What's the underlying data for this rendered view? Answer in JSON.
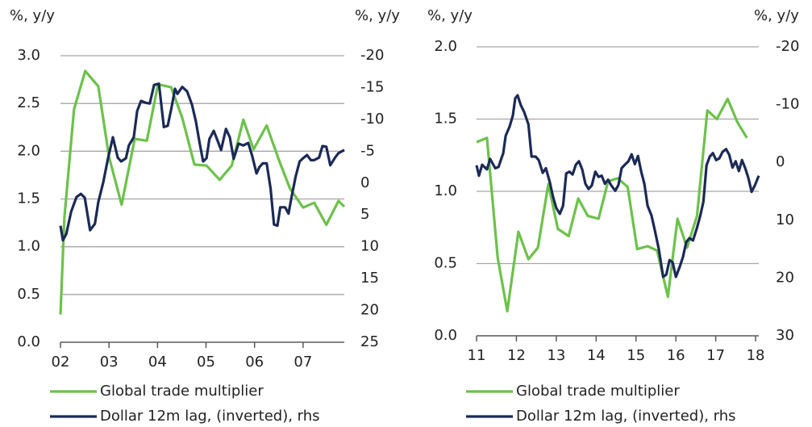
{
  "chart_data": [
    {
      "type": "line",
      "y_label": "%, y/y",
      "y2_label": "%, y/y",
      "xlim": [
        2002,
        2007.85
      ],
      "xticks": [
        {
          "value": 2002,
          "label": "02"
        },
        {
          "value": 2003,
          "label": "03"
        },
        {
          "value": 2004,
          "label": "04"
        },
        {
          "value": 2005,
          "label": "05"
        },
        {
          "value": 2006,
          "label": "06"
        },
        {
          "value": 2007,
          "label": "07"
        }
      ],
      "ylim": [
        0,
        3
      ],
      "yticks": [
        {
          "value": 0,
          "label": "0.0"
        },
        0.5,
        {
          "value": 1,
          "label": "1.0"
        },
        1.5,
        {
          "value": 2,
          "label": "2.0"
        },
        2.5,
        {
          "value": 3,
          "label": "3.0"
        }
      ],
      "y2lim": [
        25,
        -20
      ],
      "y2ticks": [
        25,
        20,
        15,
        10,
        5,
        0,
        -5,
        -10,
        -15,
        -20
      ],
      "grid": true,
      "series": [
        {
          "name": "Global trade multiplier",
          "color": "#6cc24a",
          "axis": "y",
          "x": [
            2002.0,
            2002.08,
            2002.28,
            2002.51,
            2002.78,
            2003.0,
            2003.26,
            2003.53,
            2003.78,
            2004.01,
            2004.28,
            2004.51,
            2004.76,
            2005.01,
            2005.28,
            2005.53,
            2005.77,
            2005.98,
            2006.25,
            2006.5,
            2006.73,
            2007.0,
            2007.23,
            2007.48,
            2007.73,
            2007.85
          ],
          "values": [
            0.29,
            1.3,
            2.44,
            2.84,
            2.68,
            1.94,
            1.44,
            2.13,
            2.11,
            2.7,
            2.67,
            2.35,
            1.86,
            1.85,
            1.7,
            1.85,
            2.33,
            2.02,
            2.27,
            1.91,
            1.61,
            1.41,
            1.46,
            1.23,
            1.48,
            1.42
          ]
        },
        {
          "name": "Dollar 12m lag, (inverted), rhs",
          "color": "#1b2a57",
          "axis": "y2",
          "x": [
            2002.0,
            2002.05,
            2002.12,
            2002.22,
            2002.33,
            2002.42,
            2002.5,
            2002.61,
            2002.71,
            2002.78,
            2002.88,
            2002.98,
            2003.08,
            2003.18,
            2003.25,
            2003.35,
            2003.41,
            2003.51,
            2003.58,
            2003.66,
            2003.76,
            2003.84,
            2003.93,
            2004.03,
            2004.13,
            2004.21,
            2004.29,
            2004.36,
            2004.41,
            2004.51,
            2004.61,
            2004.71,
            2004.79,
            2004.87,
            2004.94,
            2005.01,
            2005.07,
            2005.16,
            2005.24,
            2005.31,
            2005.41,
            2005.49,
            2005.57,
            2005.67,
            2005.77,
            2005.87,
            2005.95,
            2006.04,
            2006.1,
            2006.17,
            2006.25,
            2006.33,
            2006.4,
            2006.47,
            2006.53,
            2006.63,
            2006.7,
            2006.77,
            2006.85,
            2006.93,
            2007.0,
            2007.08,
            2007.16,
            2007.23,
            2007.33,
            2007.4,
            2007.48,
            2007.56,
            2007.66,
            2007.73,
            2007.85
          ],
          "values": [
            6.7,
            9.0,
            8.0,
            4.5,
            2.2,
            1.7,
            2.3,
            7.4,
            6.4,
            3.0,
            -0.1,
            -3.9,
            -7.2,
            -4.0,
            -3.4,
            -3.9,
            -5.9,
            -7.2,
            -11.3,
            -12.9,
            -12.6,
            -12.5,
            -15.4,
            -15.6,
            -8.8,
            -9.0,
            -11.9,
            -14.8,
            -14.0,
            -15.1,
            -14.4,
            -12.3,
            -9.7,
            -6.2,
            -3.4,
            -3.9,
            -6.9,
            -8.2,
            -6.6,
            -5.2,
            -8.5,
            -7.2,
            -3.8,
            -6.2,
            -5.9,
            -6.3,
            -4.3,
            -1.5,
            -2.5,
            -3.1,
            -3.1,
            0.8,
            6.5,
            6.7,
            3.8,
            3.8,
            4.8,
            1.9,
            -1.1,
            -3.4,
            -3.9,
            -4.4,
            -3.6,
            -3.6,
            -4.0,
            -5.8,
            -5.7,
            -2.8,
            -4.0,
            -4.7,
            -5.2
          ]
        }
      ]
    },
    {
      "type": "line",
      "y_label": "%, y/y",
      "y2_label": "%, y/y",
      "xlim": [
        2011,
        2018.08
      ],
      "xticks": [
        {
          "value": 2011,
          "label": "11"
        },
        {
          "value": 2012,
          "label": "12"
        },
        {
          "value": 2013,
          "label": "13"
        },
        {
          "value": 2014,
          "label": "14"
        },
        {
          "value": 2015,
          "label": "15"
        },
        {
          "value": 2016,
          "label": "16"
        },
        {
          "value": 2017,
          "label": "17"
        },
        {
          "value": 2018,
          "label": "18"
        }
      ],
      "ylim": [
        0,
        2
      ],
      "yticks": [
        {
          "value": 0,
          "label": "0.0"
        },
        0.5,
        {
          "value": 1,
          "label": "1.0"
        },
        1.5,
        {
          "value": 2,
          "label": "2.0"
        }
      ],
      "y2lim": [
        30,
        -20
      ],
      "y2ticks": [
        30,
        20,
        10,
        0,
        -10,
        -20
      ],
      "grid": true,
      "series": [
        {
          "name": "Global trade multiplier",
          "color": "#6cc24a",
          "axis": "y",
          "x": [
            2011.0,
            2011.26,
            2011.53,
            2011.77,
            2012.05,
            2012.3,
            2012.54,
            2012.8,
            2013.04,
            2013.31,
            2013.55,
            2013.79,
            2014.06,
            2014.3,
            2014.54,
            2014.79,
            2015.03,
            2015.29,
            2015.53,
            2015.8,
            2016.04,
            2016.28,
            2016.53,
            2016.79,
            2017.03,
            2017.3,
            2017.54,
            2017.78
          ],
          "values": [
            1.34,
            1.37,
            0.54,
            0.17,
            0.72,
            0.53,
            0.61,
            1.05,
            0.74,
            0.69,
            0.95,
            0.83,
            0.81,
            1.07,
            1.09,
            1.03,
            0.6,
            0.62,
            0.59,
            0.27,
            0.81,
            0.61,
            0.83,
            1.56,
            1.5,
            1.64,
            1.48,
            1.37
          ]
        },
        {
          "name": "Dollar 12m lag, (inverted), rhs",
          "color": "#1b2a57",
          "axis": "y2",
          "x": [
            2011.0,
            2011.06,
            2011.14,
            2011.26,
            2011.34,
            2011.47,
            2011.55,
            2011.67,
            2011.73,
            2011.83,
            2011.91,
            2011.97,
            2012.03,
            2012.11,
            2012.19,
            2012.3,
            2012.38,
            2012.48,
            2012.56,
            2012.66,
            2012.74,
            2012.84,
            2012.92,
            2013.0,
            2013.09,
            2013.17,
            2013.25,
            2013.33,
            2013.41,
            2013.49,
            2013.57,
            2013.65,
            2013.73,
            2013.81,
            2013.89,
            2013.98,
            2014.06,
            2014.14,
            2014.22,
            2014.3,
            2014.38,
            2014.48,
            2014.56,
            2014.64,
            2014.72,
            2014.81,
            2014.89,
            2014.97,
            2015.05,
            2015.13,
            2015.21,
            2015.29,
            2015.39,
            2015.47,
            2015.57,
            2015.68,
            2015.76,
            2015.84,
            2015.92,
            2016.0,
            2016.1,
            2016.18,
            2016.26,
            2016.34,
            2016.43,
            2016.53,
            2016.61,
            2016.69,
            2016.77,
            2016.85,
            2016.93,
            2017.01,
            2017.09,
            2017.17,
            2017.26,
            2017.34,
            2017.42,
            2017.5,
            2017.58,
            2017.66,
            2017.74,
            2017.82,
            2017.9,
            2017.98,
            2018.08
          ],
          "values": [
            0.5,
            2.3,
            0.4,
            1.2,
            -0.6,
            1.0,
            0.8,
            -1.6,
            -4.6,
            -6.2,
            -8.1,
            -11.1,
            -11.6,
            -9.9,
            -8.8,
            -6.6,
            -1.0,
            -1.0,
            -0.4,
            1.8,
            1.0,
            3.5,
            6.0,
            7.9,
            8.9,
            7.5,
            1.9,
            1.6,
            2.1,
            0.4,
            -0.2,
            1.2,
            3.7,
            4.6,
            4.0,
            1.6,
            2.5,
            2.3,
            3.7,
            3.0,
            4.0,
            4.9,
            3.9,
            1.0,
            0.4,
            -0.2,
            -1.4,
            0.3,
            -1.1,
            1.6,
            3.7,
            7.5,
            9.2,
            11.7,
            14.9,
            19.8,
            19.4,
            16.9,
            17.3,
            19.8,
            18.0,
            16.3,
            13.8,
            13.1,
            13.5,
            11.3,
            9.3,
            6.8,
            0.5,
            -1.0,
            -1.6,
            -0.4,
            -0.7,
            -1.8,
            -2.3,
            -1.3,
            0.9,
            -0.2,
            1.5,
            -0.4,
            1.0,
            2.7,
            5.1,
            4.0,
            2.3
          ]
        }
      ]
    }
  ]
}
